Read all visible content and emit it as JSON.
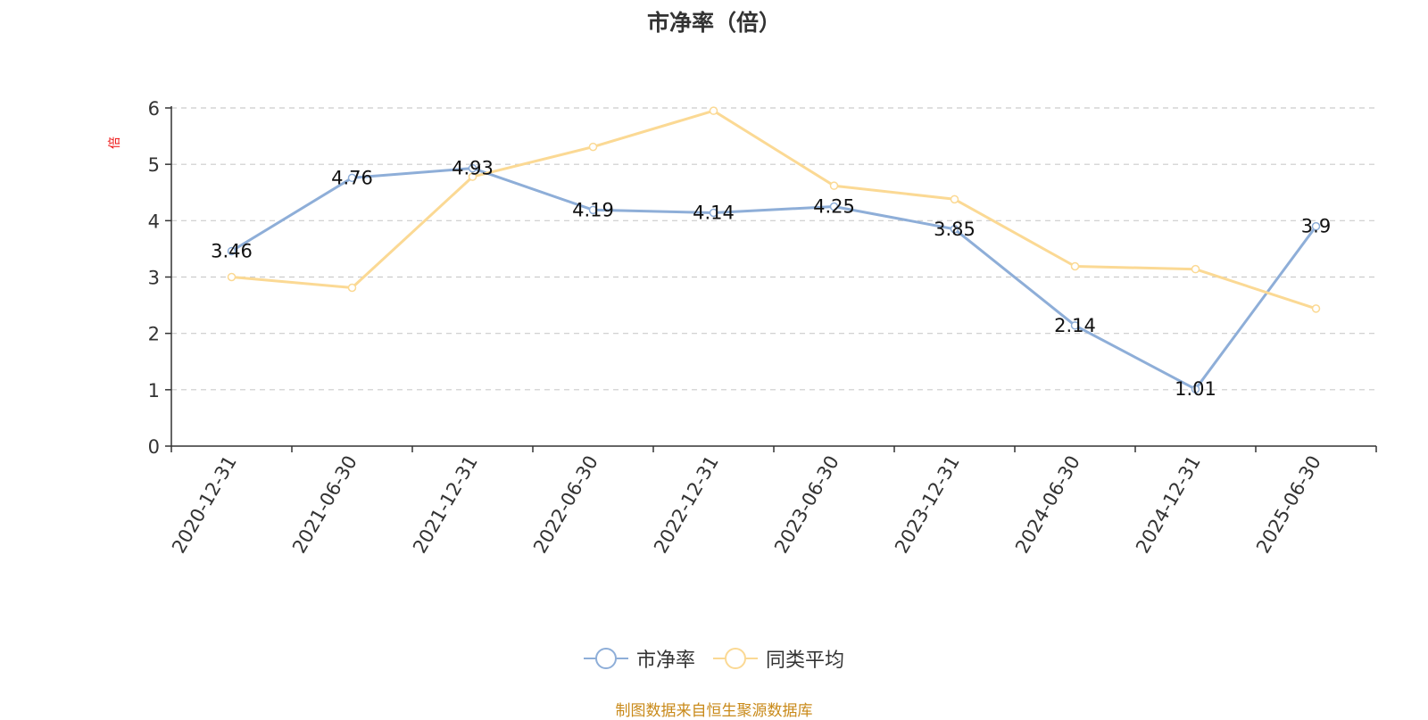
{
  "chart_data": {
    "type": "line",
    "title": "市净率（倍）",
    "ylabel": "倍",
    "ylim": [
      0,
      6
    ],
    "yticks": [
      0,
      1,
      2,
      3,
      4,
      5,
      6
    ],
    "grid": true,
    "legend_position": "bottom",
    "categories": [
      "2020-12-31",
      "2021-06-30",
      "2021-12-31",
      "2022-06-30",
      "2022-12-31",
      "2023-06-30",
      "2023-12-31",
      "2024-06-30",
      "2024-12-31",
      "2025-06-30"
    ],
    "series": [
      {
        "name": "市净率",
        "color": "#8eaed8",
        "values": [
          3.46,
          4.76,
          4.93,
          4.19,
          4.14,
          4.25,
          3.85,
          2.14,
          1.01,
          3.9
        ],
        "value_labels": [
          "3.46",
          "4.76",
          "4.93",
          "4.19",
          "4.14",
          "4.25",
          "3.85",
          "2.14",
          "1.01",
          "3.9"
        ]
      },
      {
        "name": "同类平均",
        "color": "#fbd994",
        "values": [
          3.0,
          2.81,
          4.78,
          5.31,
          5.95,
          4.62,
          4.38,
          3.19,
          3.14,
          2.44
        ]
      }
    ]
  },
  "source_note": "制图数据来自恒生聚源数据库",
  "colors": {
    "axis": "#333333",
    "grid": "#cccccc",
    "ylabel": "#ee1111",
    "source": "#c98a1a"
  }
}
